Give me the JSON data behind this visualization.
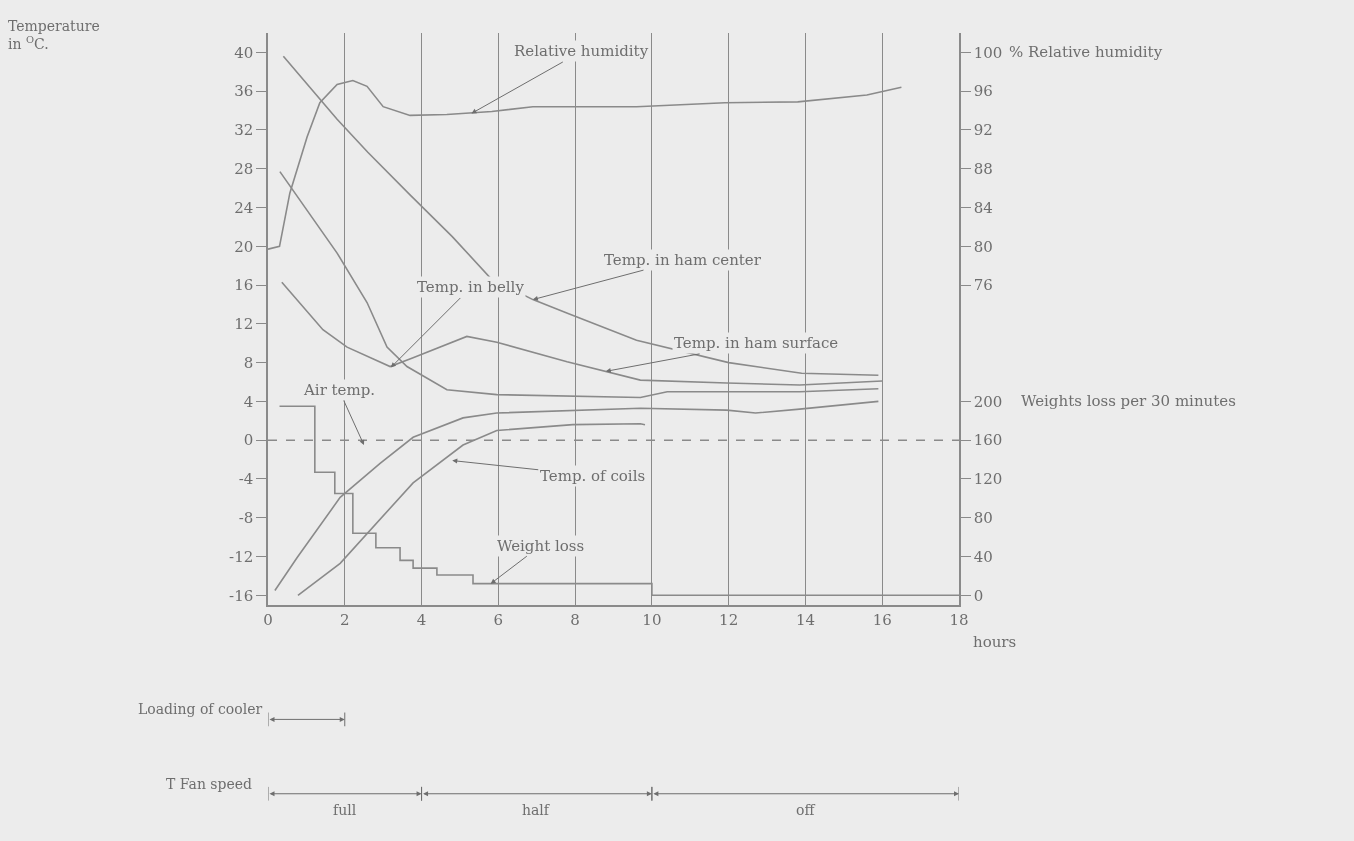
{
  "chart_data": {
    "type": "line",
    "y2label": "% Relative humidity",
    "y3label": "Weights loss per 30 minutes",
    "xlabel": "hours",
    "xlim": [
      0,
      18
    ],
    "xticks": [
      0,
      2,
      4,
      6,
      8,
      10,
      12,
      14,
      16,
      18
    ],
    "ylim": [
      -17,
      42
    ],
    "yticks": [
      -16,
      -12,
      -8,
      -4,
      0,
      4,
      8,
      12,
      16,
      20,
      24,
      28,
      32,
      36,
      40
    ],
    "y2lim": [
      43,
      102
    ],
    "y2ticks": [
      76,
      80,
      84,
      88,
      92,
      96,
      100
    ],
    "y3lim": [
      -10,
      580
    ],
    "y3ticks": [
      0,
      40,
      80,
      120,
      160,
      200
    ],
    "grid": "x",
    "series": [
      {
        "color": "#8a8a8a",
        "axis": "y2",
        "x": [
          0,
          0.3,
          0.57,
          1.02,
          1.35,
          1.8,
          2.21,
          2.58,
          3.0,
          3.7,
          4.66,
          5.83,
          6.9,
          9.6,
          11.9,
          13.8,
          15.6,
          16.5
        ],
        "values": [
          79.7,
          80.0,
          85.5,
          91.3,
          94.8,
          96.7,
          97.1,
          96.5,
          94.4,
          93.5,
          93.6,
          93.9,
          94.4,
          94.4,
          94.8,
          94.9,
          95.6,
          96.4
        ]
      },
      {
        "color": "#8a8a8a",
        "x": [
          0.4,
          1.8,
          2.6,
          3.7,
          4.8,
          5.8,
          6.9,
          7.8,
          9.6,
          12.0,
          13.9,
          15.9
        ],
        "values": [
          39.6,
          33.1,
          29.7,
          25.3,
          21.0,
          16.7,
          14.5,
          13.1,
          10.3,
          8.0,
          6.9,
          6.7
        ]
      },
      {
        "color": "#8a8a8a",
        "x": [
          0.31,
          1.8,
          2.58,
          3.1,
          3.62,
          4.66,
          5.96,
          9.7,
          10.4,
          13.85,
          15.9
        ],
        "values": [
          27.7,
          19.3,
          14.2,
          9.6,
          7.6,
          5.2,
          4.7,
          4.4,
          5.0,
          5.0,
          5.3
        ]
      },
      {
        "color": "#8a8a8a",
        "x": [
          0.36,
          1.43,
          2.06,
          3.18,
          3.78,
          5.18,
          5.96,
          7.79,
          9.7,
          11.95,
          13.85,
          16.0
        ],
        "values": [
          16.3,
          11.4,
          9.6,
          7.6,
          8.5,
          10.7,
          10.1,
          8.1,
          6.2,
          5.9,
          5.7,
          6.1
        ]
      },
      {
        "color": "#8a8a8a",
        "x": [
          0.18,
          0.76,
          1.88,
          2.92,
          3.78,
          5.08,
          5.96,
          9.7,
          11.95,
          12.7,
          13.85,
          15.9
        ],
        "values": [
          -15.5,
          -12.1,
          -5.9,
          -2.4,
          0.3,
          2.3,
          2.8,
          3.3,
          3.1,
          2.8,
          3.2,
          4.0
        ]
      },
      {
        "color": "#8a8a8a",
        "x": [
          0.78,
          1.88,
          3.78,
          5.08,
          5.96,
          7.94,
          9.7,
          9.82
        ],
        "values": [
          -16.0,
          -12.7,
          -4.4,
          -0.5,
          1.0,
          1.6,
          1.7,
          1.6
        ]
      },
      {
        "type": "step",
        "color": "#8a8a8a",
        "axis": "y3",
        "x": [
          0.3,
          1.22,
          1.74,
          2.21,
          2.81,
          3.44,
          3.78,
          4.4,
          5.34,
          10.0,
          18
        ],
        "values": [
          195,
          127,
          105,
          64,
          49,
          36,
          28,
          21,
          12,
          0,
          0
        ]
      }
    ],
    "ref_lines": [
      {
        "axis": "y",
        "value": 0,
        "line_style": "dashed",
        "color": "#8a8a8a"
      }
    ],
    "annotations": [
      {
        "text": "Relative humidity",
        "x": 5.3,
        "y": 33.7
      },
      {
        "text": "Temp. in ham center",
        "x": 6.9,
        "y": 14.5
      },
      {
        "text": "Temp. in belly",
        "x": 3.2,
        "y": 7.5
      },
      {
        "text": "Temp. in ham surface",
        "x": 8.8,
        "y": 7.1
      },
      {
        "text": "Air temp.",
        "x": 2.5,
        "y": -0.5
      },
      {
        "text": "Temp. of coils",
        "x": 4.8,
        "y": -2.1
      },
      {
        "text": "Weight loss",
        "x": 5.8,
        "y": -14.8
      },
      "Temperature in $^{O}$C.",
      "Loading of cooler",
      "T Fan speed",
      "full",
      "half",
      "off"
    ]
  }
}
